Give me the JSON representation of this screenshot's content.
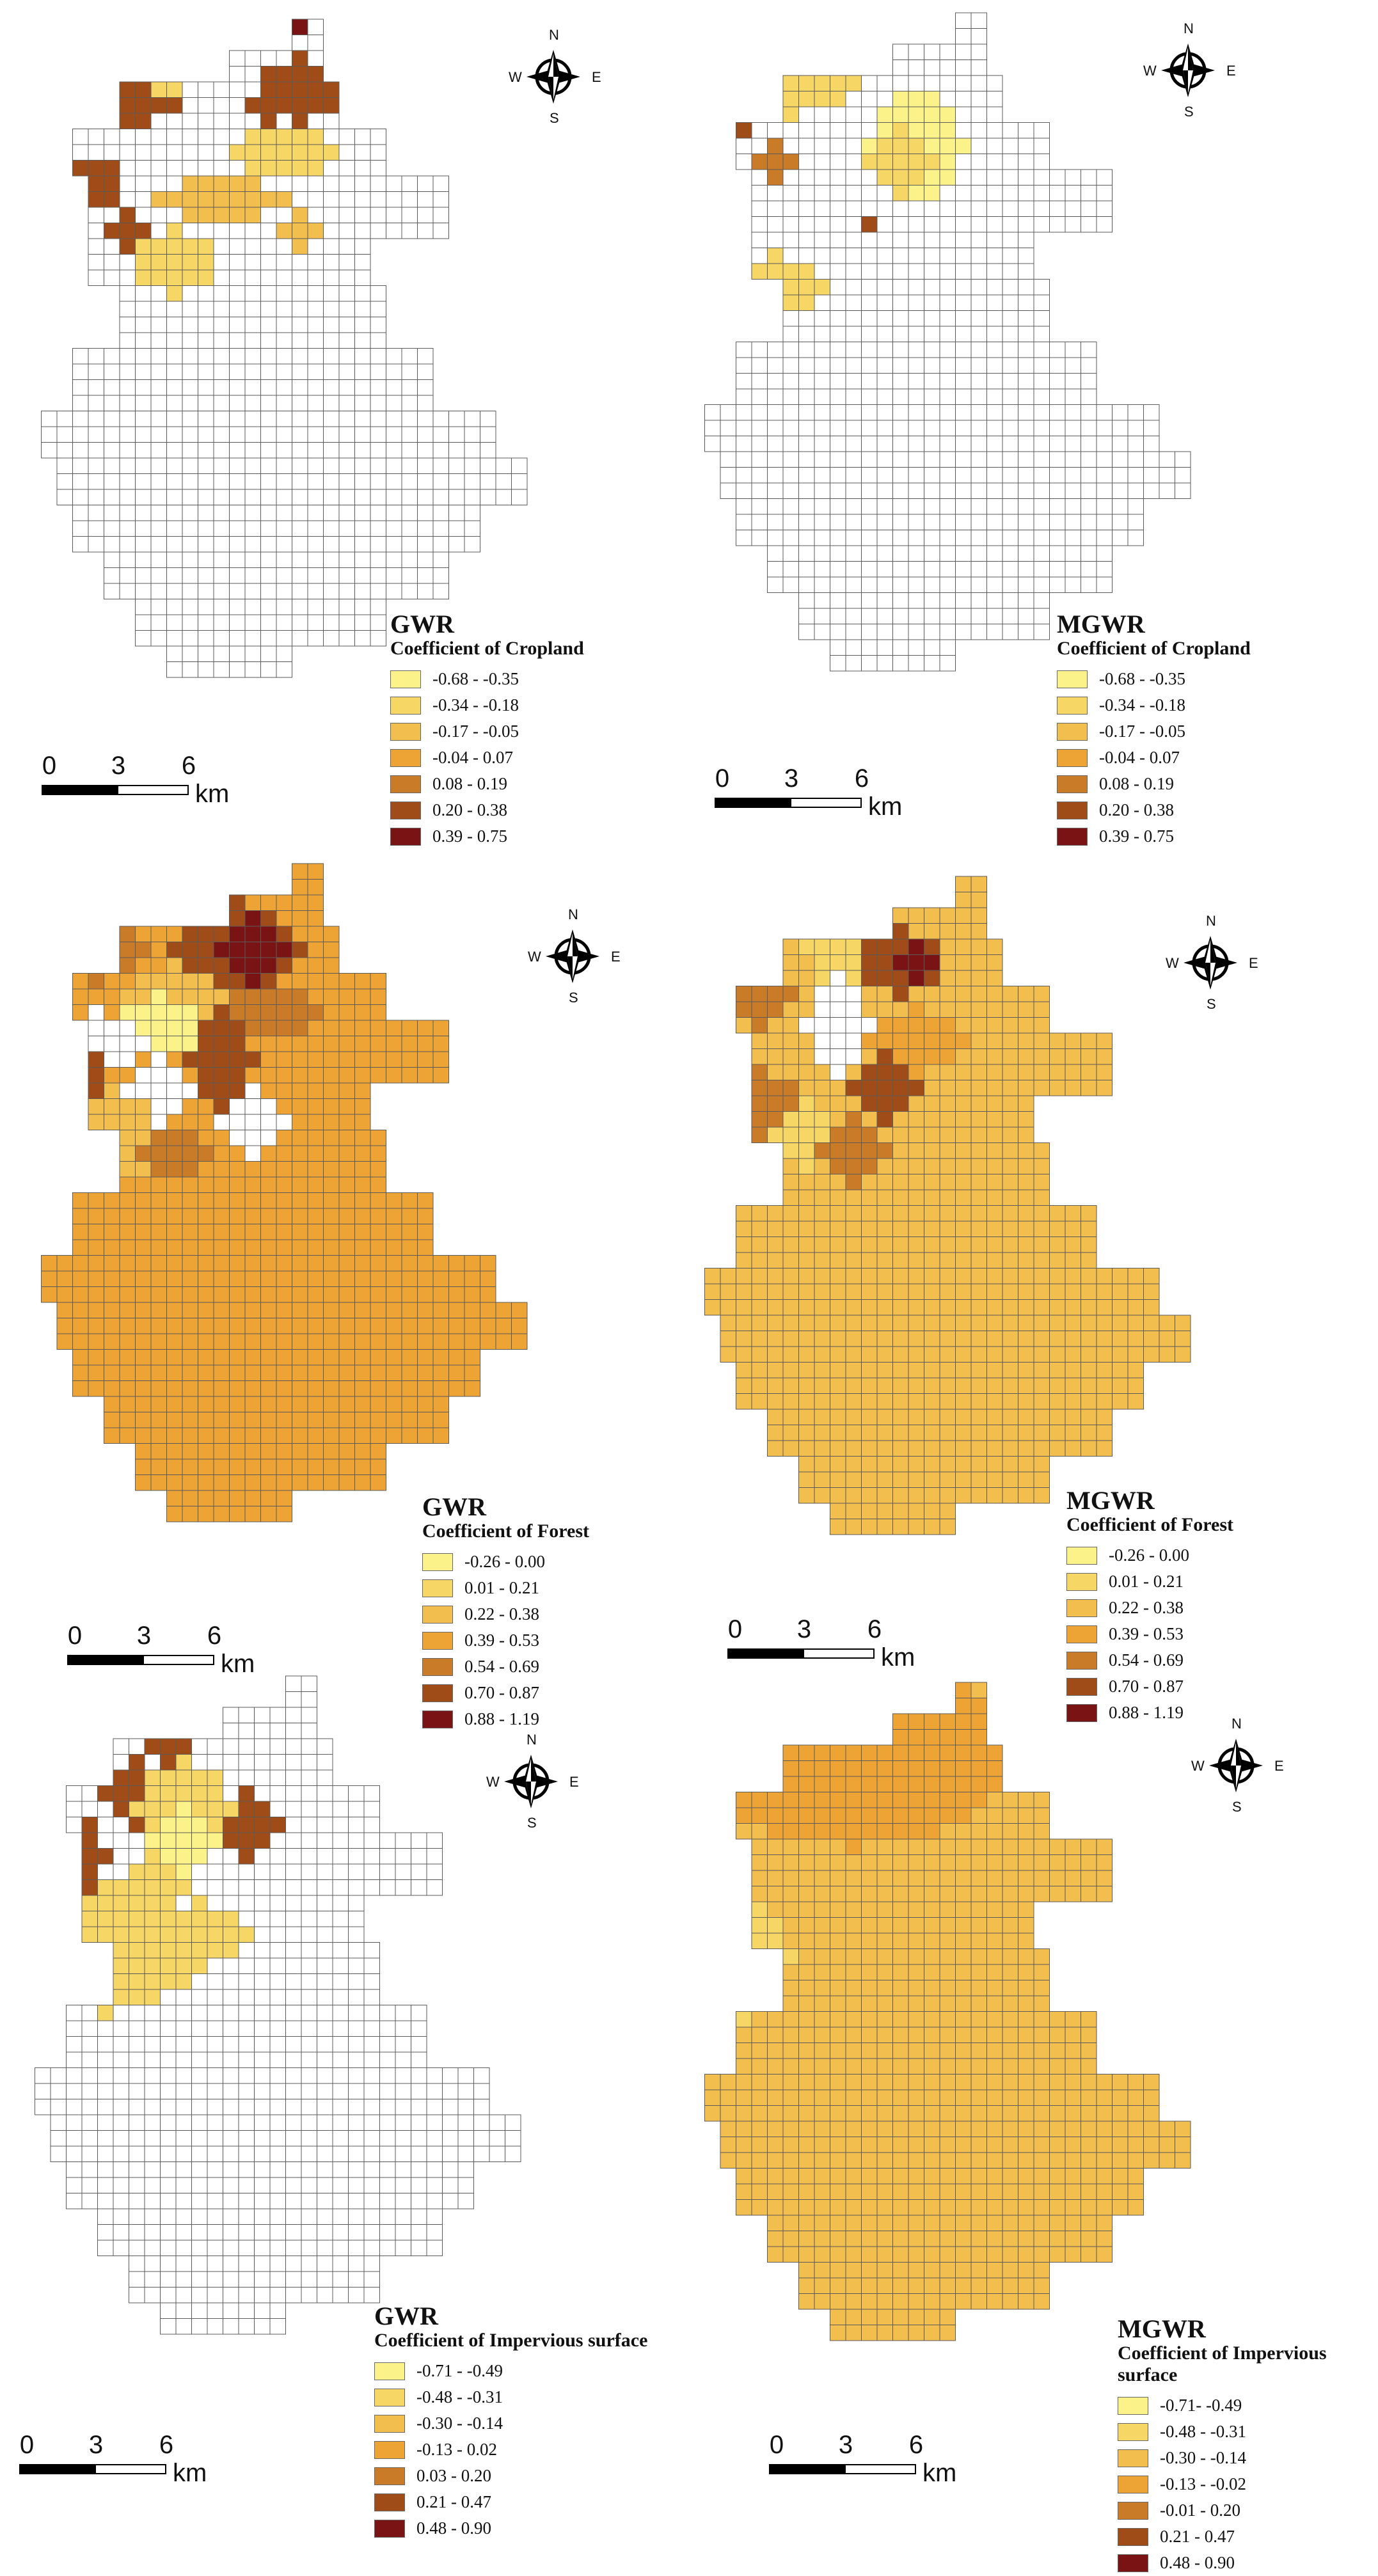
{
  "colors": {
    "cls": [
      "#fbf38a",
      "#f6d664",
      "#f2be4d",
      "#eea435",
      "#c97b28",
      "#a04c18",
      "#7a1313"
    ],
    "nodata": "#ffffff",
    "grid": "#5a5a5a"
  },
  "compass": {
    "n": "N",
    "s": "S",
    "e": "E",
    "w": "W"
  },
  "scalebar": {
    "ticks": [
      "0",
      "3",
      "6"
    ],
    "unit": "km"
  },
  "panels": [
    {
      "title": "GWR",
      "subtitle": "Coefficient of Cropland",
      "classes": [
        "-0.68 - -0.35",
        "-0.34 - -0.18",
        "-0.17 - -0.05",
        "-0.04 - 0.07",
        "0.08 - 0.19",
        "0.20 - 0.38",
        "0.39 - 0.75"
      ]
    },
    {
      "title": "MGWR",
      "subtitle": "Coefficient of Cropland",
      "classes": [
        "-0.68 - -0.35",
        "-0.34 - -0.18",
        "-0.17 - -0.05",
        "-0.04 - 0.07",
        "0.08 - 0.19",
        "0.20 - 0.38",
        "0.39 - 0.75"
      ]
    },
    {
      "title": "GWR",
      "subtitle": "Coefficient of Forest",
      "classes": [
        "-0.26 - 0.00",
        "0.01 - 0.21",
        "0.22 - 0.38",
        "0.39 - 0.53",
        "0.54 - 0.69",
        "0.70 - 0.87",
        "0.88 - 1.19"
      ]
    },
    {
      "title": "MGWR",
      "subtitle": "Coefficient of Forest",
      "classes": [
        "-0.26 - 0.00",
        "0.01 - 0.21",
        "0.22 - 0.38",
        "0.39 - 0.53",
        "0.54 - 0.69",
        "0.70 - 0.87",
        "0.88 - 1.19"
      ]
    },
    {
      "title": "GWR",
      "subtitle": "Coefficient of Impervious surface",
      "classes": [
        "-0.71 - -0.49",
        "-0.48 - -0.31",
        "-0.30 - -0.14",
        "-0.13 - 0.02",
        "0.03 - 0.20",
        "0.21 - 0.47",
        "0.48 - 0.90"
      ]
    },
    {
      "title": "MGWR",
      "subtitle": "Coefficient of Impervious surface",
      "classes": [
        "-0.71- -0.49",
        "-0.48 - -0.31",
        "-0.30 - -0.14",
        "-0.13 - -0.02",
        "-0.01 - 0.20",
        "0.21 - 0.47",
        "0.48 - 0.90"
      ]
    }
  ]
}
